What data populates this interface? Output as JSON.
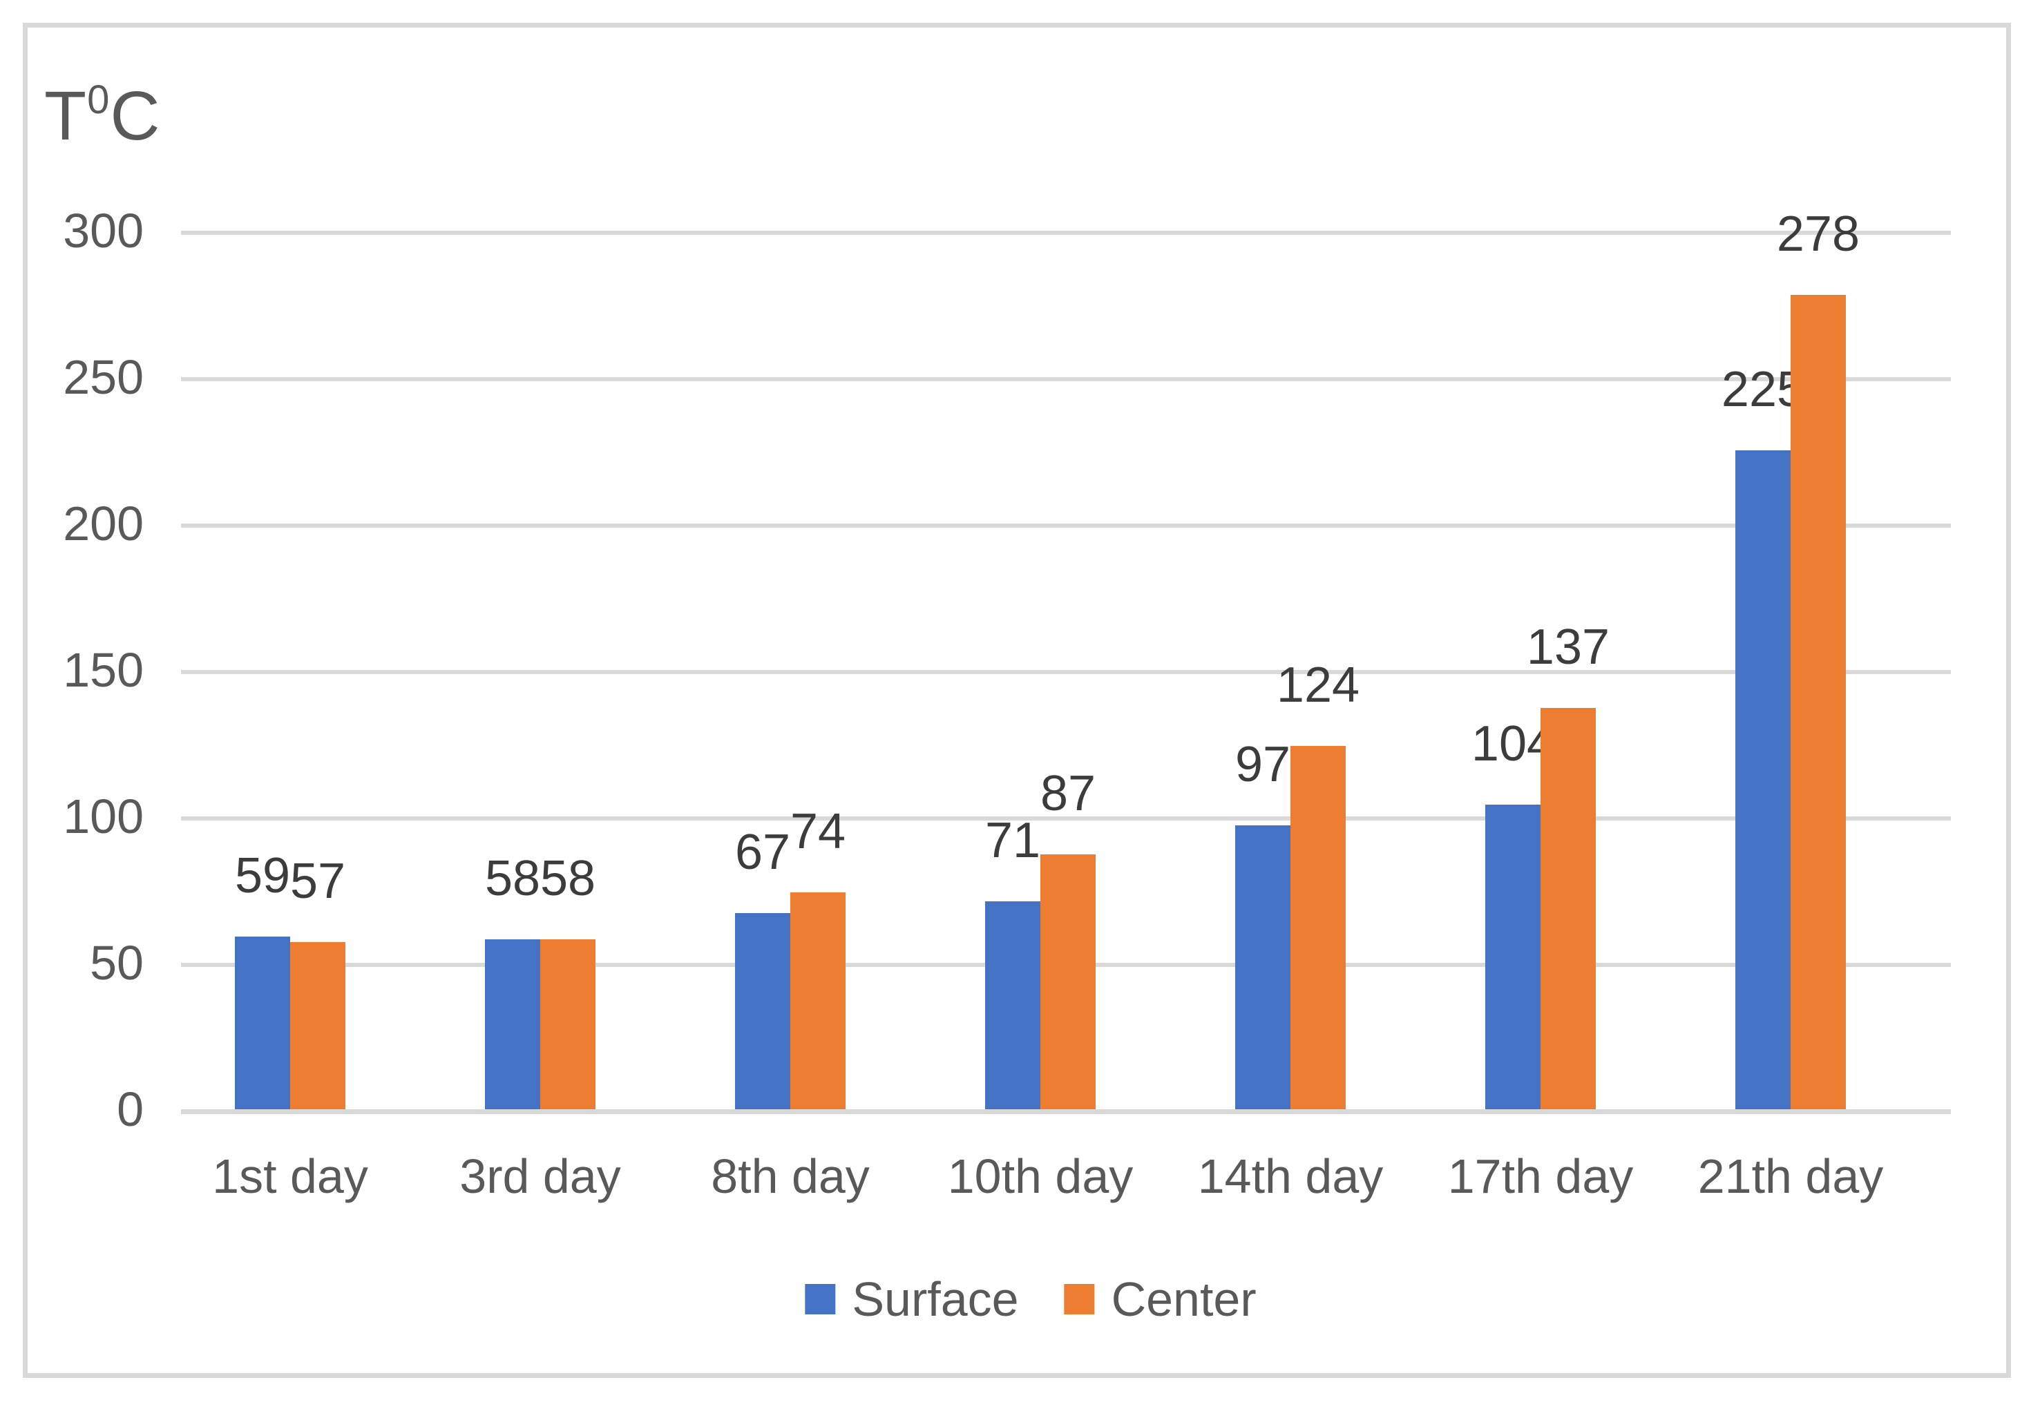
{
  "chart_title": {
    "prefix": "T",
    "superscript": "0",
    "suffix": "C"
  },
  "chart_data": {
    "type": "bar",
    "title": "T0C",
    "ylabel": "T0C",
    "xlabel": "",
    "categories": [
      "1st day",
      "3rd day",
      "8th day",
      "10th day",
      "14th day",
      "17th day",
      "21th day"
    ],
    "series": [
      {
        "name": "Surface",
        "color": "#4472C4",
        "values": [
          59,
          58,
          67,
          71,
          97,
          104,
          225
        ]
      },
      {
        "name": "Center",
        "color": "#ED7D31",
        "values": [
          57,
          58,
          74,
          87,
          124,
          137,
          278
        ]
      }
    ],
    "ylim": [
      0,
      300
    ],
    "yticks": [
      0,
      50,
      100,
      150,
      200,
      250,
      300
    ],
    "grid": true,
    "gridline_color": "#D9D9D9",
    "legend_position": "bottom",
    "data_labels": true
  },
  "legend": {
    "items": [
      {
        "label": "Surface",
        "color": "#4472C4"
      },
      {
        "label": "Center",
        "color": "#ED7D31"
      }
    ]
  },
  "colors": {
    "surface": "#4472C4",
    "center": "#ED7D31",
    "gridline": "#D9D9D9",
    "frame_border": "#D9D9D9",
    "axis_text": "#595959",
    "data_label_text": "#3C3C3C",
    "background": "#FFFFFF"
  }
}
